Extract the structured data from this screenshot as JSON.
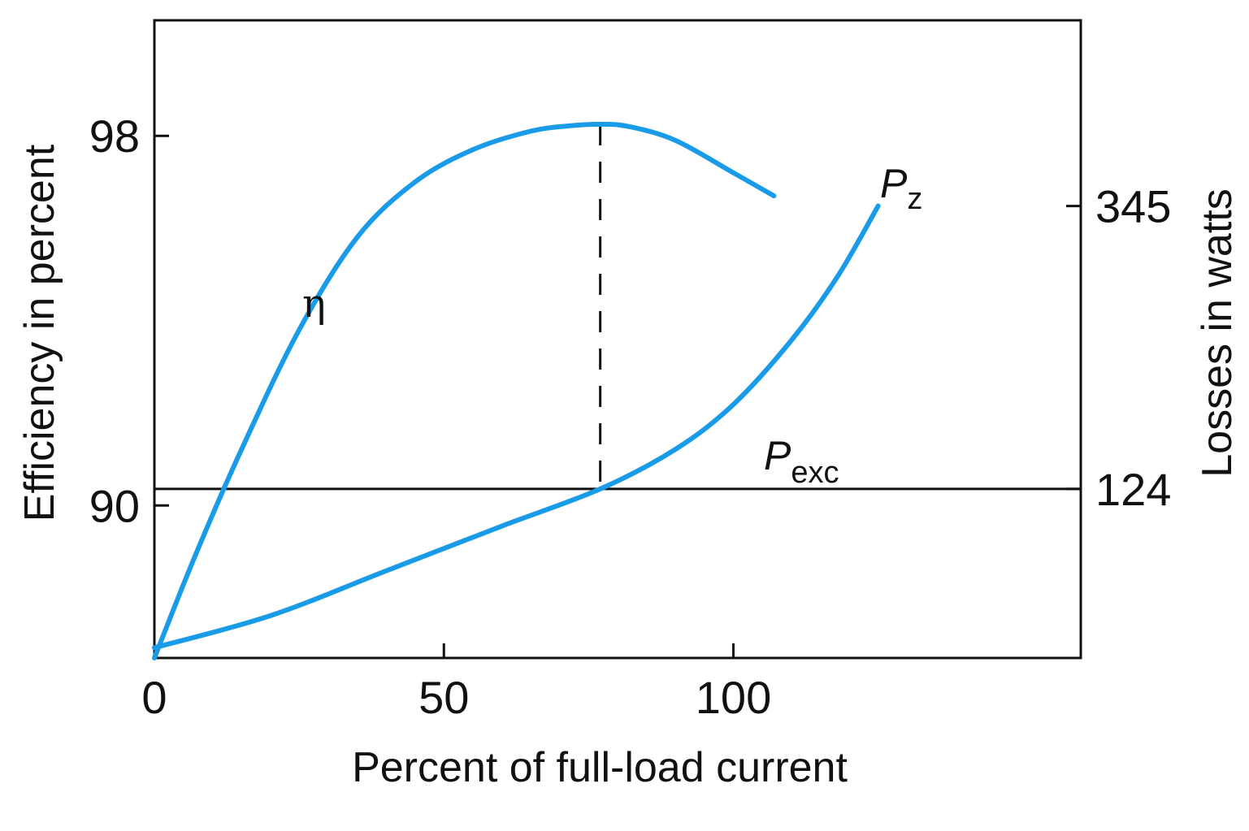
{
  "chart_data": {
    "type": "line",
    "xlabel": "Percent of full-load current",
    "ylabel_left": "Efficiency in percent",
    "ylabel_right": "Losses in watts",
    "x_ticks": [
      "0",
      "50",
      "100"
    ],
    "x_tick_values": [
      0,
      50,
      100
    ],
    "xlim": [
      0,
      160
    ],
    "y_left_ticks": [
      "98",
      "90"
    ],
    "y_left_tick_values": [
      98,
      90
    ],
    "ylim_left": [
      86.7,
      100.5
    ],
    "y_right_ticks": [
      "345",
      "124"
    ],
    "y_right_tick_values": [
      345,
      124
    ],
    "ylim_right": [
      -8,
      490
    ],
    "grid": false,
    "legend": "none",
    "reference_lines": [
      {
        "kind": "horizontal",
        "axis": "right",
        "value": 124,
        "style": "solid"
      },
      {
        "kind": "vertical",
        "x": 77,
        "style": "dashed"
      }
    ],
    "series": [
      {
        "name": "η",
        "axis": "left",
        "color": "#1a9be8",
        "x": [
          0,
          7,
          15,
          25,
          35,
          45,
          55,
          65,
          72,
          77,
          82,
          90,
          100,
          107
        ],
        "y": [
          86.7,
          88.9,
          91.2,
          93.8,
          95.8,
          97.0,
          97.7,
          98.1,
          98.22,
          98.25,
          98.2,
          97.9,
          97.2,
          96.7
        ]
      },
      {
        "name": "P_exc",
        "axis": "right",
        "color": "#1a9be8",
        "x": [
          0,
          20,
          40,
          60,
          77,
          90,
          100,
          110,
          118,
          125
        ],
        "y": [
          0,
          25,
          60,
          95,
          124,
          155,
          190,
          240,
          290,
          345
        ]
      },
      {
        "name": "P_z",
        "axis": "right",
        "color": "#1a9be8",
        "x": [
          125
        ],
        "y": [
          345
        ]
      }
    ],
    "labels": {
      "eta": "η",
      "pexc_main": "P",
      "pexc_sub": "exc",
      "pz_main": "P",
      "pz_sub": "z"
    }
  }
}
